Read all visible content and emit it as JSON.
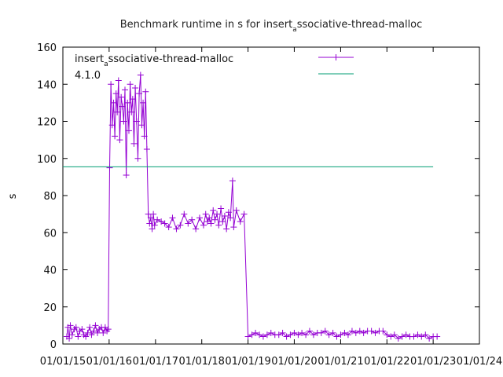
{
  "chart_data": {
    "type": "line",
    "title": {
      "pre": "Benchmark runtime in s for insert",
      "sub": "a",
      "post": "ssociative-thread-malloc"
    },
    "xlabel": "",
    "ylabel": "s",
    "ylim": [
      0,
      160
    ],
    "xlim": [
      "2015-01-01",
      "2024-01-01"
    ],
    "yticks": [
      0,
      20,
      40,
      60,
      80,
      100,
      120,
      140,
      160
    ],
    "xticks": [
      "01/01/15",
      "01/01/16",
      "01/01/17",
      "01/01/18",
      "01/01/19",
      "01/01/20",
      "01/01/21",
      "01/01/22",
      "01/01/23",
      "01/01/24"
    ],
    "grid": false,
    "legend_position": "top-right",
    "legend_text": {
      "pre": "insert",
      "sub": "a",
      "post": "ssociative-thread-malloc",
      "line2": "4.1.0"
    },
    "colors": {
      "series": "#9400d3",
      "reference": "#009e73"
    },
    "series": [
      {
        "name": "",
        "marker": "plus",
        "x": [
          "2015-02-01",
          "2015-02-10",
          "2015-02-20",
          "2015-03-01",
          "2015-03-15",
          "2015-04-01",
          "2015-04-15",
          "2015-05-01",
          "2015-05-15",
          "2015-06-01",
          "2015-06-15",
          "2015-07-01",
          "2015-07-15",
          "2015-08-01",
          "2015-08-15",
          "2015-09-01",
          "2015-09-15",
          "2015-10-01",
          "2015-10-15",
          "2015-11-01",
          "2015-11-15",
          "2015-12-01",
          "2015-12-15",
          "2015-12-25",
          "2016-01-05",
          "2016-01-15",
          "2016-01-25",
          "2016-02-05",
          "2016-02-15",
          "2016-02-25",
          "2016-03-05",
          "2016-03-15",
          "2016-03-25",
          "2016-04-05",
          "2016-04-15",
          "2016-04-25",
          "2016-05-05",
          "2016-05-15",
          "2016-05-25",
          "2016-06-05",
          "2016-06-15",
          "2016-06-25",
          "2016-07-05",
          "2016-07-15",
          "2016-07-25",
          "2016-08-05",
          "2016-08-15",
          "2016-08-25",
          "2016-09-05",
          "2016-09-15",
          "2016-09-25",
          "2016-10-05",
          "2016-10-15",
          "2016-10-25",
          "2016-11-05",
          "2016-11-15",
          "2016-11-25",
          "2016-12-05",
          "2016-12-15",
          "2016-12-25",
          "2017-01-15",
          "2017-02-15",
          "2017-03-15",
          "2017-04-15",
          "2017-05-15",
          "2017-06-15",
          "2017-07-15",
          "2017-08-15",
          "2017-09-15",
          "2017-10-15",
          "2017-11-15",
          "2017-12-15",
          "2018-01-15",
          "2018-02-01",
          "2018-02-15",
          "2018-03-01",
          "2018-03-15",
          "2018-04-01",
          "2018-04-15",
          "2018-05-01",
          "2018-05-15",
          "2018-06-01",
          "2018-06-15",
          "2018-07-01",
          "2018-07-15",
          "2018-08-01",
          "2018-08-15",
          "2018-09-01",
          "2018-09-10",
          "2018-10-01",
          "2018-11-01",
          "2018-12-01",
          "2019-01-01",
          "2019-02-01",
          "2019-03-01",
          "2019-04-01",
          "2019-05-01",
          "2019-06-01",
          "2019-07-01",
          "2019-08-01",
          "2019-09-01",
          "2019-10-01",
          "2019-11-01",
          "2019-12-01",
          "2020-01-01",
          "2020-02-01",
          "2020-03-01",
          "2020-04-01",
          "2020-05-01",
          "2020-06-01",
          "2020-07-01",
          "2020-08-01",
          "2020-09-01",
          "2020-10-01",
          "2020-11-01",
          "2020-12-01",
          "2021-01-01",
          "2021-02-01",
          "2021-03-01",
          "2021-04-01",
          "2021-05-01",
          "2021-06-01",
          "2021-07-01",
          "2021-08-01",
          "2021-09-01",
          "2021-10-01",
          "2021-11-01",
          "2021-12-01",
          "2022-01-01",
          "2022-02-01",
          "2022-03-01",
          "2022-04-01",
          "2022-05-01",
          "2022-06-01",
          "2022-07-01",
          "2022-08-01",
          "2022-09-01",
          "2022-10-01",
          "2022-11-01",
          "2022-12-01",
          "2023-01-01",
          "2023-02-01"
        ],
        "y": [
          4,
          9,
          3,
          10,
          5,
          8,
          9,
          4,
          7,
          8,
          5,
          4,
          6,
          9,
          5,
          7,
          10,
          6,
          8,
          9,
          6,
          9,
          7,
          8,
          95,
          140,
          118,
          130,
          112,
          135,
          125,
          142,
          110,
          133,
          128,
          120,
          137,
          91,
          130,
          115,
          140,
          125,
          132,
          108,
          138,
          120,
          100,
          135,
          145,
          118,
          130,
          112,
          136,
          105,
          70,
          65,
          68,
          62,
          70,
          64,
          67,
          66,
          65,
          63,
          68,
          62,
          64,
          70,
          65,
          67,
          62,
          68,
          64,
          70,
          66,
          68,
          65,
          72,
          67,
          70,
          64,
          73,
          66,
          69,
          62,
          71,
          68,
          88,
          63,
          72,
          66,
          70,
          4,
          5,
          6,
          5,
          4,
          5,
          6,
          5,
          5,
          6,
          4,
          5,
          6,
          5,
          6,
          5,
          7,
          5,
          6,
          6,
          7,
          5,
          6,
          4,
          5,
          6,
          5,
          7,
          6,
          7,
          6,
          7,
          7,
          6,
          7,
          7,
          5,
          4,
          5,
          3,
          4,
          5,
          4,
          4,
          5,
          4,
          5,
          3,
          4,
          4
        ]
      },
      {
        "name": "",
        "marker": "none",
        "x": [
          "2015-01-01",
          "2023-01-01"
        ],
        "y": [
          95.5,
          95.5
        ]
      }
    ]
  }
}
